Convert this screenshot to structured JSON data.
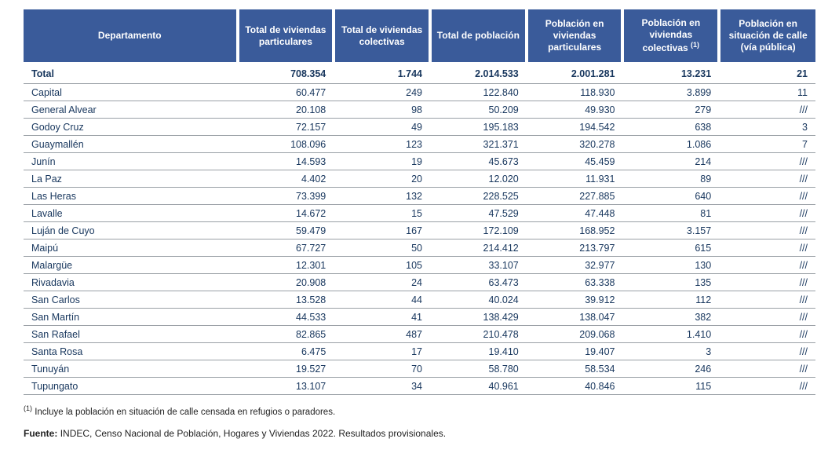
{
  "table": {
    "header_bg": "#3a5b9a",
    "header_fg": "#ffffff",
    "body_fg": "#17365d",
    "row_border": "#9aa0a6",
    "columns": [
      "Departamento",
      "Total de viviendas particulares",
      "Total de viviendas colectivas",
      "Total de población",
      "Población en viviendas particulares",
      "Población en viviendas colectivas",
      "Población en situación de calle (vía pública)"
    ],
    "col5_footnote_marker": "(1)",
    "total_row": {
      "label": "Total",
      "viv_part": "708.354",
      "viv_col": "1.744",
      "pob_total": "2.014.533",
      "pob_viv_part": "2.001.281",
      "pob_viv_col": "13.231",
      "pob_calle": "21"
    },
    "rows": [
      {
        "dep": "Capital",
        "viv_part": "60.477",
        "viv_col": "249",
        "pob_total": "122.840",
        "pob_viv_part": "118.930",
        "pob_viv_col": "3.899",
        "pob_calle": "11"
      },
      {
        "dep": "General Alvear",
        "viv_part": "20.108",
        "viv_col": "98",
        "pob_total": "50.209",
        "pob_viv_part": "49.930",
        "pob_viv_col": "279",
        "pob_calle": "///"
      },
      {
        "dep": "Godoy Cruz",
        "viv_part": "72.157",
        "viv_col": "49",
        "pob_total": "195.183",
        "pob_viv_part": "194.542",
        "pob_viv_col": "638",
        "pob_calle": "3"
      },
      {
        "dep": "Guaymallén",
        "viv_part": "108.096",
        "viv_col": "123",
        "pob_total": "321.371",
        "pob_viv_part": "320.278",
        "pob_viv_col": "1.086",
        "pob_calle": "7"
      },
      {
        "dep": "Junín",
        "viv_part": "14.593",
        "viv_col": "19",
        "pob_total": "45.673",
        "pob_viv_part": "45.459",
        "pob_viv_col": "214",
        "pob_calle": "///"
      },
      {
        "dep": "La Paz",
        "viv_part": "4.402",
        "viv_col": "20",
        "pob_total": "12.020",
        "pob_viv_part": "11.931",
        "pob_viv_col": "89",
        "pob_calle": "///"
      },
      {
        "dep": "Las Heras",
        "viv_part": "73.399",
        "viv_col": "132",
        "pob_total": "228.525",
        "pob_viv_part": "227.885",
        "pob_viv_col": "640",
        "pob_calle": "///"
      },
      {
        "dep": "Lavalle",
        "viv_part": "14.672",
        "viv_col": "15",
        "pob_total": "47.529",
        "pob_viv_part": "47.448",
        "pob_viv_col": "81",
        "pob_calle": "///"
      },
      {
        "dep": "Luján de Cuyo",
        "viv_part": "59.479",
        "viv_col": "167",
        "pob_total": "172.109",
        "pob_viv_part": "168.952",
        "pob_viv_col": "3.157",
        "pob_calle": "///"
      },
      {
        "dep": "Maipú",
        "viv_part": "67.727",
        "viv_col": "50",
        "pob_total": "214.412",
        "pob_viv_part": "213.797",
        "pob_viv_col": "615",
        "pob_calle": "///"
      },
      {
        "dep": "Malargüe",
        "viv_part": "12.301",
        "viv_col": "105",
        "pob_total": "33.107",
        "pob_viv_part": "32.977",
        "pob_viv_col": "130",
        "pob_calle": "///"
      },
      {
        "dep": "Rivadavia",
        "viv_part": "20.908",
        "viv_col": "24",
        "pob_total": "63.473",
        "pob_viv_part": "63.338",
        "pob_viv_col": "135",
        "pob_calle": "///"
      },
      {
        "dep": "San Carlos",
        "viv_part": "13.528",
        "viv_col": "44",
        "pob_total": "40.024",
        "pob_viv_part": "39.912",
        "pob_viv_col": "112",
        "pob_calle": "///"
      },
      {
        "dep": "San Martín",
        "viv_part": "44.533",
        "viv_col": "41",
        "pob_total": "138.429",
        "pob_viv_part": "138.047",
        "pob_viv_col": "382",
        "pob_calle": "///"
      },
      {
        "dep": "San Rafael",
        "viv_part": "82.865",
        "viv_col": "487",
        "pob_total": "210.478",
        "pob_viv_part": "209.068",
        "pob_viv_col": "1.410",
        "pob_calle": "///"
      },
      {
        "dep": "Santa Rosa",
        "viv_part": "6.475",
        "viv_col": "17",
        "pob_total": "19.410",
        "pob_viv_part": "19.407",
        "pob_viv_col": "3",
        "pob_calle": "///"
      },
      {
        "dep": "Tunuyán",
        "viv_part": "19.527",
        "viv_col": "70",
        "pob_total": "58.780",
        "pob_viv_part": "58.534",
        "pob_viv_col": "246",
        "pob_calle": "///"
      },
      {
        "dep": "Tupungato",
        "viv_part": "13.107",
        "viv_col": "34",
        "pob_total": "40.961",
        "pob_viv_part": "40.846",
        "pob_viv_col": "115",
        "pob_calle": "///"
      }
    ]
  },
  "footnote": {
    "marker": "(1)",
    "text": "Incluye la población en situación de calle censada en refugios o paradores."
  },
  "source": {
    "label": "Fuente:",
    "text": "INDEC, Censo Nacional de Población, Hogares y Viviendas 2022. Resultados provisionales."
  }
}
